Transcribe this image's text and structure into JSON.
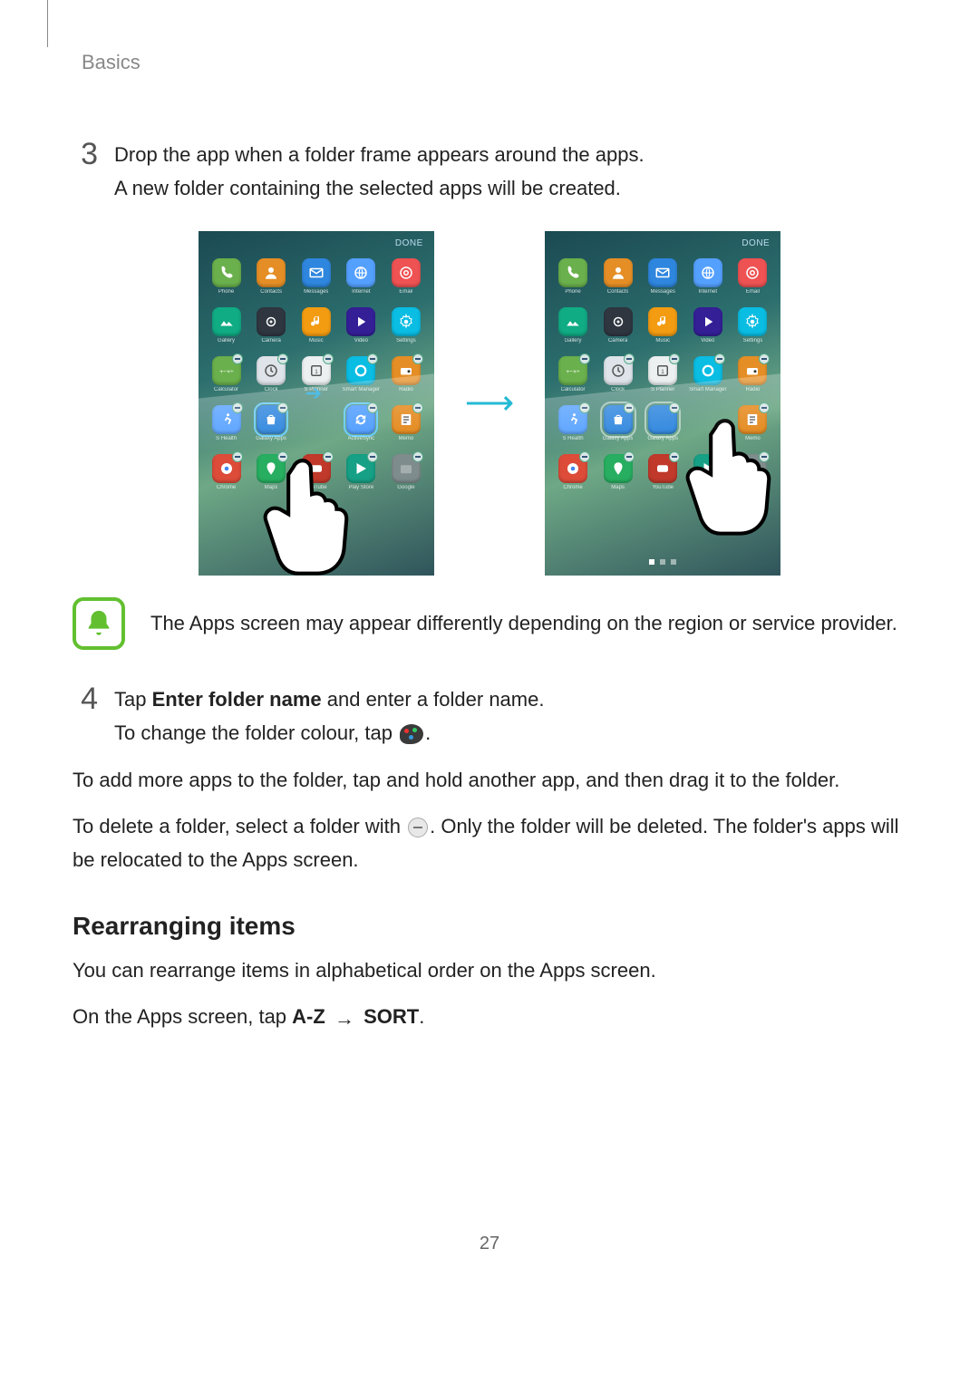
{
  "header": {
    "section": "Basics"
  },
  "step3": {
    "num": "3",
    "line1": "Drop the app when a folder frame appears around the apps.",
    "line2": "A new folder containing the selected apps will be created."
  },
  "phones": {
    "done_label": "DONE",
    "apps": [
      {
        "label": "Phone",
        "bg": "#6ab04c",
        "glyph": "telephone"
      },
      {
        "label": "Contacts",
        "bg": "#e58e26",
        "glyph": "person"
      },
      {
        "label": "Messages",
        "bg": "#2e86de",
        "glyph": "envelope"
      },
      {
        "label": "Internet",
        "bg": "#54a0ff",
        "glyph": "globe"
      },
      {
        "label": "Email",
        "bg": "#ee5253",
        "glyph": "at"
      },
      {
        "label": "Gallery",
        "bg": "#10ac84",
        "glyph": "landscape"
      },
      {
        "label": "Camera",
        "bg": "#2f3640",
        "glyph": "lens"
      },
      {
        "label": "Music",
        "bg": "#f39c12",
        "glyph": "note"
      },
      {
        "label": "Video",
        "bg": "#341f97",
        "glyph": "play"
      },
      {
        "label": "Settings",
        "bg": "#0abde3",
        "glyph": "gear"
      },
      {
        "label": "Calculator",
        "bg": "#6ab04c",
        "glyph": "calc"
      },
      {
        "label": "Clock",
        "bg": "#dfe4ea",
        "glyph": "clock",
        "fg": "#555"
      },
      {
        "label": "S Planner",
        "bg": "#ecf0f1",
        "glyph": "cal",
        "fg": "#555"
      },
      {
        "label": "Smart Manager",
        "bg": "#0abde3",
        "glyph": "ring"
      },
      {
        "label": "Radio",
        "bg": "#e58e26",
        "glyph": "radio"
      },
      {
        "label": "S Health",
        "bg": "#54a0ff",
        "glyph": "runner"
      },
      {
        "label": "Galaxy Apps",
        "bg": "#2e86de",
        "glyph": "bag",
        "selected_a": true
      },
      {
        "label": "",
        "bg": "transparent",
        "blank_a": true,
        "label_b": "Galaxy Apps",
        "bg_b": "#2e86de"
      },
      {
        "label": "ActiveSync",
        "bg": "#54a0ff",
        "glyph": "sync",
        "selected_a": true,
        "blank_b": true
      },
      {
        "label": "Memo",
        "bg": "#e58e26",
        "glyph": "memo"
      },
      {
        "label": "Chrome",
        "bg": "#dd4b39",
        "glyph": "chrome"
      },
      {
        "label": "Maps",
        "bg": "#27ae60",
        "glyph": "pin"
      },
      {
        "label": "YouTube",
        "bg": "#c0392b",
        "glyph": "yt"
      },
      {
        "label": "Play Store",
        "bg": "#16a085",
        "glyph": "tri"
      },
      {
        "label": "Google",
        "bg": "#7f8c8d",
        "glyph": "folder"
      }
    ]
  },
  "note": {
    "text": "The Apps screen may appear differently depending on the region or service provider."
  },
  "step4": {
    "num": "4",
    "line1_pre": "Tap ",
    "line1_bold": "Enter folder name",
    "line1_post": " and enter a folder name.",
    "line2_pre": "To change the folder colour, tap ",
    "line2_post": "."
  },
  "para_add": "To add more apps to the folder, tap and hold another app, and then drag it to the folder.",
  "para_del_pre": "To delete a folder, select a folder with ",
  "para_del_post": ". Only the folder will be deleted. The folder's apps will be relocated to the Apps screen.",
  "rearranging": {
    "heading": "Rearranging items",
    "p1": "You can rearrange items in alphabetical order on the Apps screen.",
    "p2_pre": "On the Apps screen, tap ",
    "p2_b1": "A-Z",
    "p2_arrow": "→",
    "p2_b2": "SORT",
    "p2_post": "."
  },
  "pagenum": "27",
  "colors": {
    "note_border": "#62c030",
    "arrow": "#25b9d3"
  }
}
